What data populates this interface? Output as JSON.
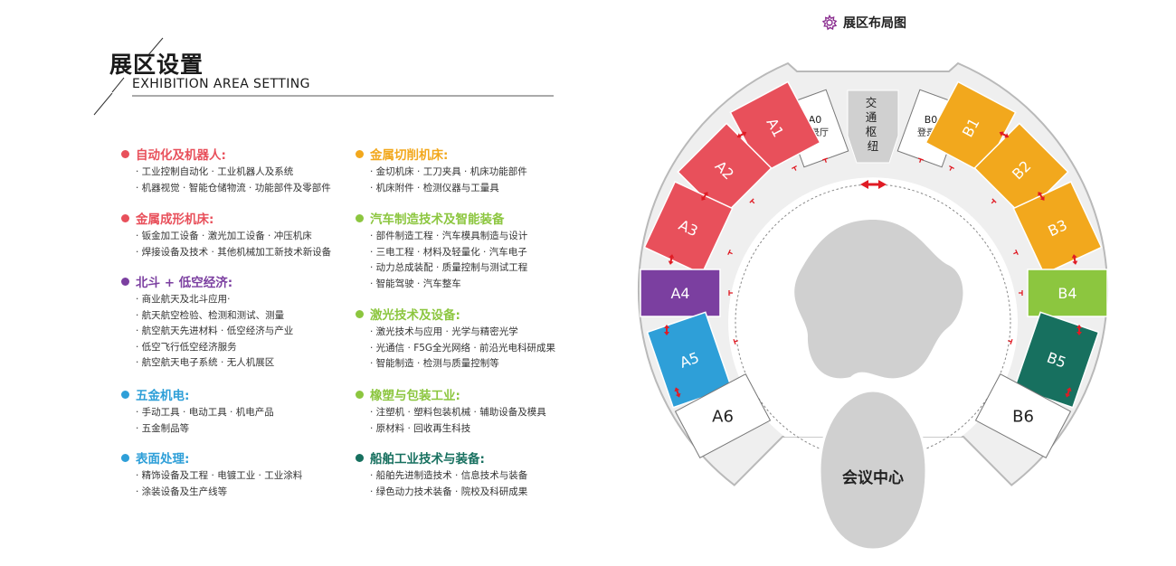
{
  "heading": {
    "title_cn": "展区设置",
    "title_en": "EXHIBITION AREA SETTING"
  },
  "categories": [
    {
      "title": "自动化及机器人:",
      "color": "#e8505b",
      "items": [
        "· 工业控制自动化 · 工业机器人及系统",
        "· 机器视觉 · 智能仓储物流 · 功能部件及零部件"
      ]
    },
    {
      "title": "金属成形机床:",
      "color": "#e8505b",
      "items": [
        "· 钣金加工设备 · 激光加工设备 · 冲压机床",
        "· 焊接设备及技术 · 其他机械加工新技术新设备"
      ]
    },
    {
      "title": "北斗 + 低空经济:",
      "color": "#7b3fa0",
      "items": [
        "· 商业航天及北斗应用·",
        "· 航天航空检验、检测和测试、测量",
        "· 航空航天先进材料 · 低空经济与产业",
        "· 低空飞行低空经济服务",
        "· 航空航天电子系统 · 无人机展区"
      ]
    },
    {
      "title": "五金机电:",
      "color": "#2e9fd8",
      "items": [
        "· 手动工具 · 电动工具 · 机电产品",
        "· 五金制品等"
      ]
    },
    {
      "title": "表面处理:",
      "color": "#2e9fd8",
      "items": [
        "· 精饰设备及工程 · 电镀工业 · 工业涂料",
        "· 涂装设备及生产线等"
      ]
    },
    {
      "title": "金属切削机床:",
      "color": "#f2a81d",
      "items": [
        "· 金切机床 · 工刀夹具 · 机床功能部件",
        "· 机床附件 · 检测仪器与工量具"
      ]
    },
    {
      "title": "汽车制造技术及智能装备",
      "color": "#8cc63f",
      "items": [
        "· 部件制造工程 · 汽车模具制造与设计",
        "· 三电工程 · 材料及轻量化 · 汽车电子",
        "· 动力总成装配 · 质量控制与测试工程",
        "· 智能驾驶 · 汽车整车"
      ]
    },
    {
      "title": "激光技术及设备:",
      "color": "#8cc63f",
      "items": [
        "· 激光技术与应用 · 光学与精密光学",
        "· 光通信 · F5G全光网络 · 前沿光电科研成果",
        "· 智能制造 · 检测与质量控制等"
      ]
    },
    {
      "title": "橡塑与包装工业:",
      "color": "#8cc63f",
      "items": [
        "· 注塑机 · 塑料包装机械 · 辅助设备及模具",
        "· 原材料 · 回收再生科技"
      ]
    },
    {
      "title": "船舶工业技术与装备:",
      "color": "#17705f",
      "items": [
        "· 船舶先进制造技术 · 信息技术与装备",
        "· 绿色动力技术装备 · 院校及科研成果"
      ]
    }
  ],
  "map": {
    "title": "展区布局图",
    "icon": "gear-flower-icon",
    "hub_label": "交通枢纽",
    "meeting_label": "会议中心",
    "colors": {
      "red": "#e8505b",
      "purple": "#7b3fa0",
      "blue": "#2e9fd8",
      "orange": "#f2a81d",
      "green": "#8cc63f",
      "teal": "#17705f",
      "arrow": "#e01b24",
      "floor": "#efefef",
      "hall": "#d0d0d0"
    },
    "halls": [
      {
        "id": "A0",
        "label": "A0",
        "sublabel": "登录厅",
        "color": "#ffffff"
      },
      {
        "id": "A1",
        "label": "A1",
        "color": "#e8505b"
      },
      {
        "id": "A2",
        "label": "A2",
        "color": "#e8505b"
      },
      {
        "id": "A3",
        "label": "A3",
        "color": "#e8505b"
      },
      {
        "id": "A4",
        "label": "A4",
        "color": "#7b3fa0"
      },
      {
        "id": "A5",
        "label": "A5",
        "color": "#2e9fd8"
      },
      {
        "id": "A6",
        "label": "A6",
        "color": "#ffffff"
      },
      {
        "id": "B0",
        "label": "B0",
        "sublabel": "登录厅",
        "color": "#ffffff"
      },
      {
        "id": "B1",
        "label": "B1",
        "color": "#f2a81d"
      },
      {
        "id": "B2",
        "label": "B2",
        "color": "#f2a81d"
      },
      {
        "id": "B3",
        "label": "B3",
        "color": "#f2a81d"
      },
      {
        "id": "B4",
        "label": "B4",
        "color": "#8cc63f"
      },
      {
        "id": "B5",
        "label": "B5",
        "color": "#17705f"
      },
      {
        "id": "B6",
        "label": "B6",
        "color": "#ffffff"
      }
    ]
  }
}
